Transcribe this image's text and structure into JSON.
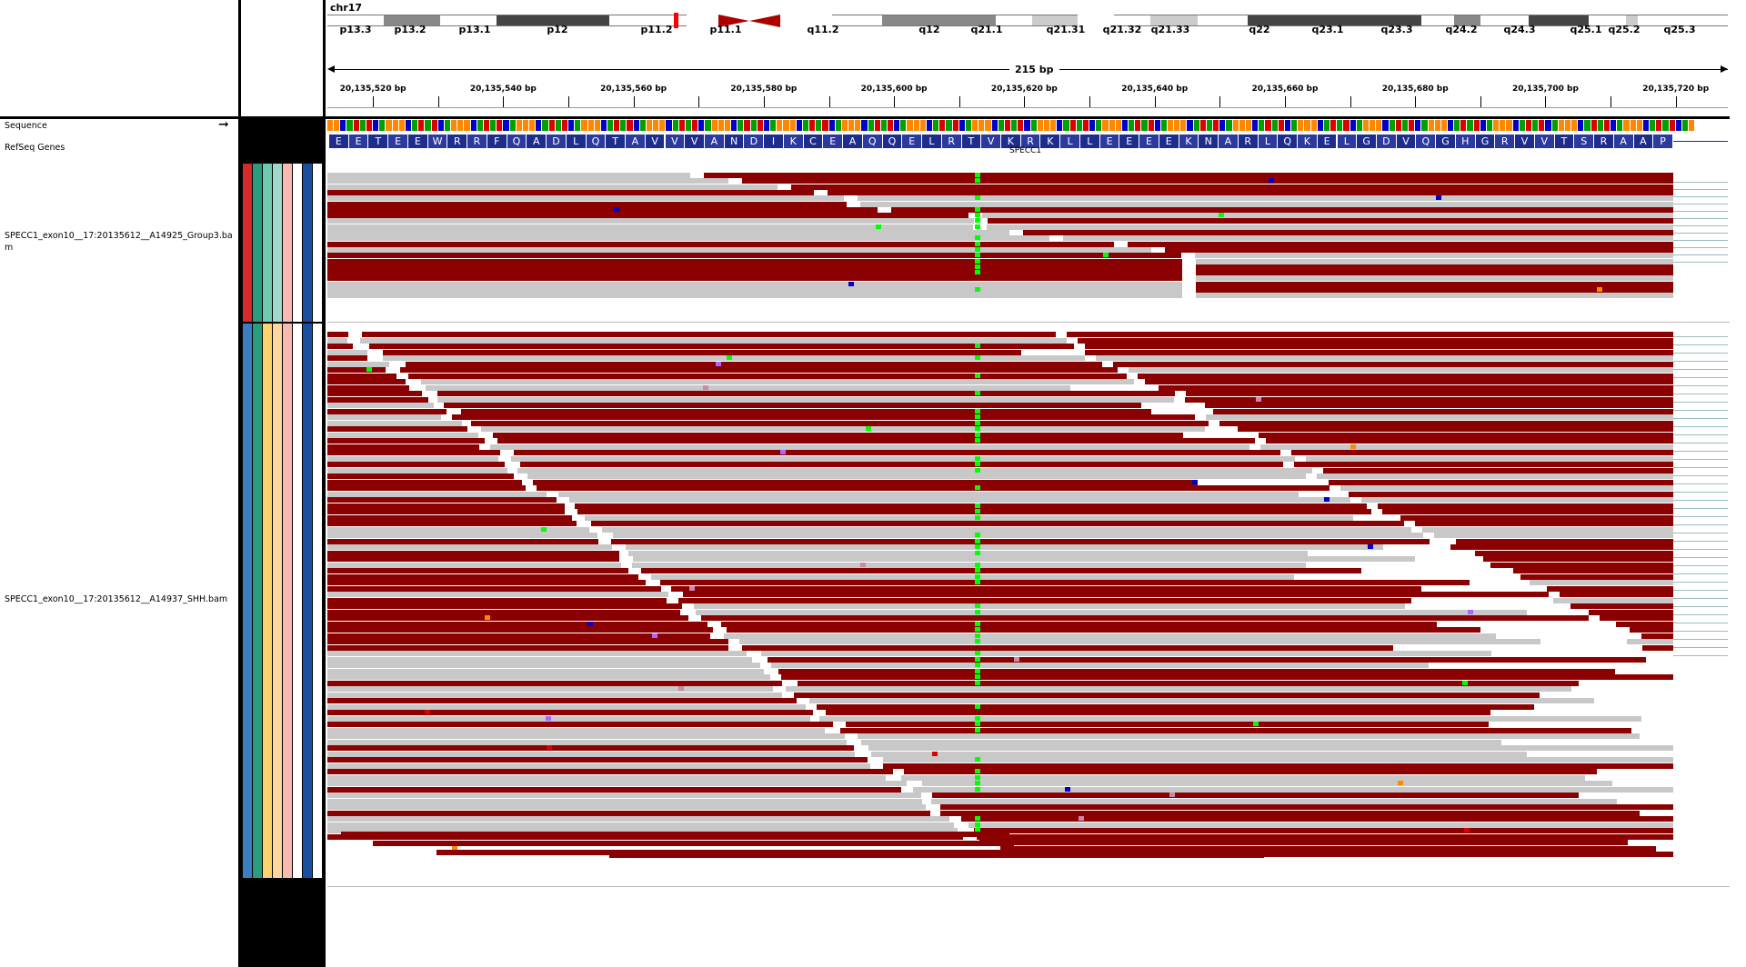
{
  "chromosome": "chr17",
  "span_label": "215 bp",
  "ideogram_bands": [
    "p13.3",
    "p13.2",
    "p13.1",
    "p12",
    "p11.2",
    "p11.1",
    "q11.2",
    "q12",
    "q21.1",
    "q21.31",
    "q21.32",
    "q21.33",
    "q22",
    "q23.1",
    "q23.3",
    "q24.2",
    "q24.3",
    "q25.1",
    "q25.2",
    "q25.3"
  ],
  "ruler_ticks": [
    "20,135,520 bp",
    "20,135,540 bp",
    "20,135,560 bp",
    "20,135,580 bp",
    "20,135,600 bp",
    "20,135,620 bp",
    "20,135,640 bp",
    "20,135,660 bp",
    "20,135,680 bp",
    "20,135,700 bp",
    "20,135,720 bp"
  ],
  "tracks": {
    "sequence": "Sequence",
    "refseq": "RefSeq Genes",
    "bam1": "SPECC1_exon10__17:20135612__A14925_Group3.bam",
    "bam2": "SPECC1_exon10__17:20135612__A14937_SHH.bam"
  },
  "gene_name": "SPECC1",
  "amino_acids": "EETEEWRRFQADLQTAVVVANDIKCEAQQELRTVKRKLLEEEEKNARLQKELGDVQGHGRVVTSRAAP",
  "colors": {
    "forward_read": "#8b0000",
    "reverse_read": "#c8c8c8",
    "snv": "#00ff00",
    "amino_acid": "#1e2d8c",
    "attr_group1": [
      "#d42a2a",
      "#2a9d80",
      "#6fc9b0",
      "#9fd8c8",
      "#f9b9b0",
      "#ffffff",
      "#1a4fa0",
      "#ffffff"
    ],
    "attr_group2": [
      "#3d7ec0",
      "#2a9d80",
      "#fcd36d",
      "#fdd7a0",
      "#f9b9b0",
      "#ffffff",
      "#1a4fa0",
      "#ffffff"
    ]
  },
  "icons": {
    "strand": "arrow-right-icon"
  }
}
